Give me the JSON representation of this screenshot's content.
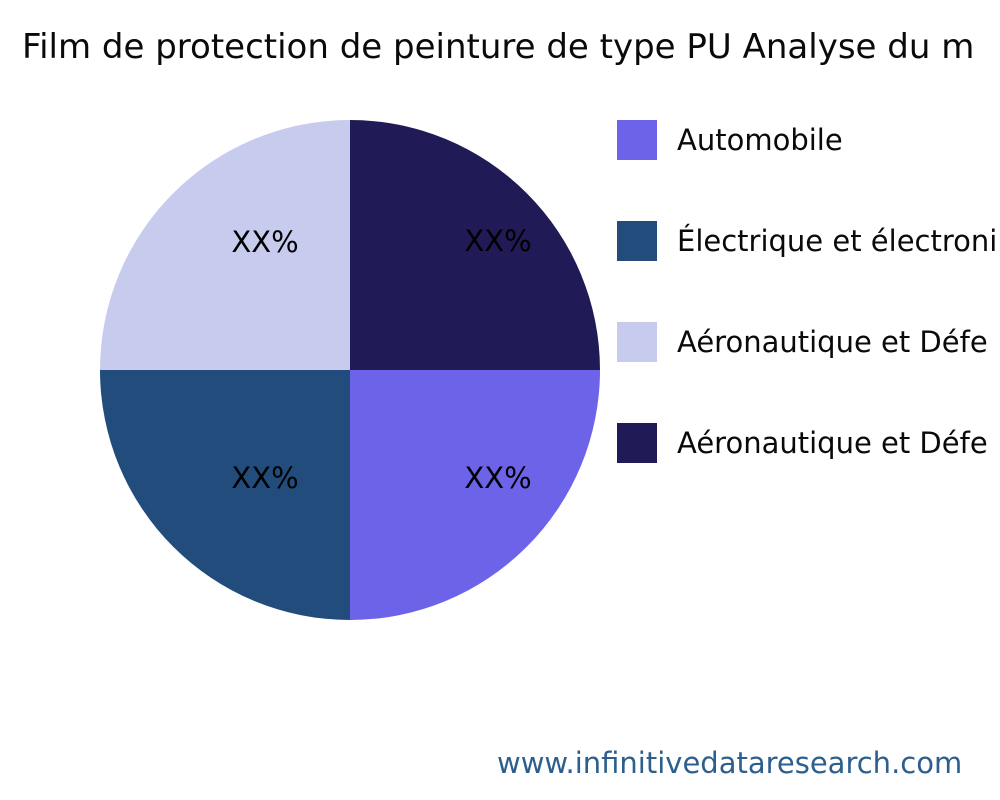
{
  "header": {
    "title": "Film de protection de peinture de type PU Analyse du m"
  },
  "chart_data": {
    "type": "pie",
    "title": "Film de protection de peinture de type PU Analyse du m",
    "legend_position": "right",
    "value_labels": "percent",
    "slices": [
      {
        "label": "Automobile",
        "display": "XX%",
        "value": 25,
        "color": "#6C63E9",
        "position": "bottom-right"
      },
      {
        "label": "Électrique et électroni",
        "display": "XX%",
        "value": 25,
        "color": "#214C7C",
        "position": "bottom-left"
      },
      {
        "label": "Aéronautique et Défe",
        "display": "XX%",
        "value": 25,
        "color": "#C7CBEE",
        "position": "top-left"
      },
      {
        "label": "Aéronautique et Défe",
        "display": "XX%",
        "value": 25,
        "color": "#201A56",
        "position": "top-right"
      }
    ]
  },
  "footer": {
    "url": "www.infinitivedataresearch.com",
    "color": "#2D5F8E"
  }
}
